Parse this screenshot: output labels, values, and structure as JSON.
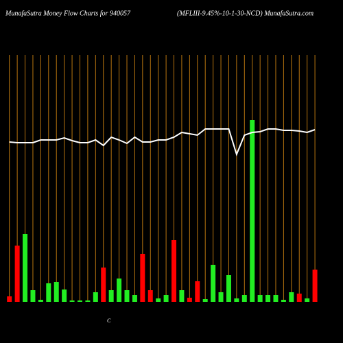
{
  "chart_data": {
    "type": "bar",
    "title": "MunafaSutra  Money Flow  Charts for 940057",
    "subtitle": "(MFLIII-9.45%-10-1-30-NCD) MunafaSutra.com",
    "annotation": "C",
    "categories": [
      null,
      null,
      null,
      null,
      null,
      null,
      null,
      null,
      null,
      null,
      null,
      null,
      null,
      null,
      null,
      null,
      null,
      null,
      null,
      null,
      null,
      null,
      null,
      null,
      null,
      null,
      null,
      null,
      null,
      null,
      null,
      null,
      null,
      null,
      null,
      null,
      null,
      null,
      null,
      null
    ],
    "series": [
      {
        "values": [
          8,
          82,
          99,
          17,
          3,
          27,
          29,
          18,
          2,
          2,
          2,
          14,
          50,
          17,
          34,
          17,
          10,
          70,
          17,
          5,
          10,
          90,
          17,
          6,
          30,
          4,
          54,
          14,
          39,
          5,
          10,
          265,
          10,
          10,
          10,
          3,
          14,
          12,
          5,
          47
        ],
        "colors": [
          "#ff0000",
          "#ff0000",
          "#22ee22",
          "#22ee22",
          "#22ee22",
          "#22ee22",
          "#22ee22",
          "#22ee22",
          "#22ee22",
          "#22ee22",
          "#22ee22",
          "#22ee22",
          "#ff0000",
          "#22ee22",
          "#22ee22",
          "#22ee22",
          "#22ee22",
          "#ff0000",
          "#ff0000",
          "#22ee22",
          "#22ee22",
          "#ff0000",
          "#22ee22",
          "#ff0000",
          "#ff0000",
          "#22ee22",
          "#22ee22",
          "#22ee22",
          "#22ee22",
          "#22ee22",
          "#22ee22",
          "#22ee22",
          "#22ee22",
          "#22ee22",
          "#22ee22",
          "#22ee22",
          "#22ee22",
          "#ff0000",
          "#22ee22",
          "#ff0000"
        ]
      },
      {
        "type": "line",
        "color": "#ffffff",
        "values": [
          233,
          232,
          232,
          232,
          236,
          236,
          236,
          239,
          235,
          232,
          232,
          236,
          228,
          240,
          236,
          231,
          240,
          233,
          233,
          236,
          236,
          240,
          247,
          245,
          243,
          252,
          252,
          252,
          252,
          215,
          243,
          247,
          248,
          252,
          252,
          250,
          250,
          249,
          247,
          251
        ]
      }
    ],
    "ylim": [
      0,
      360
    ],
    "grid_color": "#b8750f"
  }
}
